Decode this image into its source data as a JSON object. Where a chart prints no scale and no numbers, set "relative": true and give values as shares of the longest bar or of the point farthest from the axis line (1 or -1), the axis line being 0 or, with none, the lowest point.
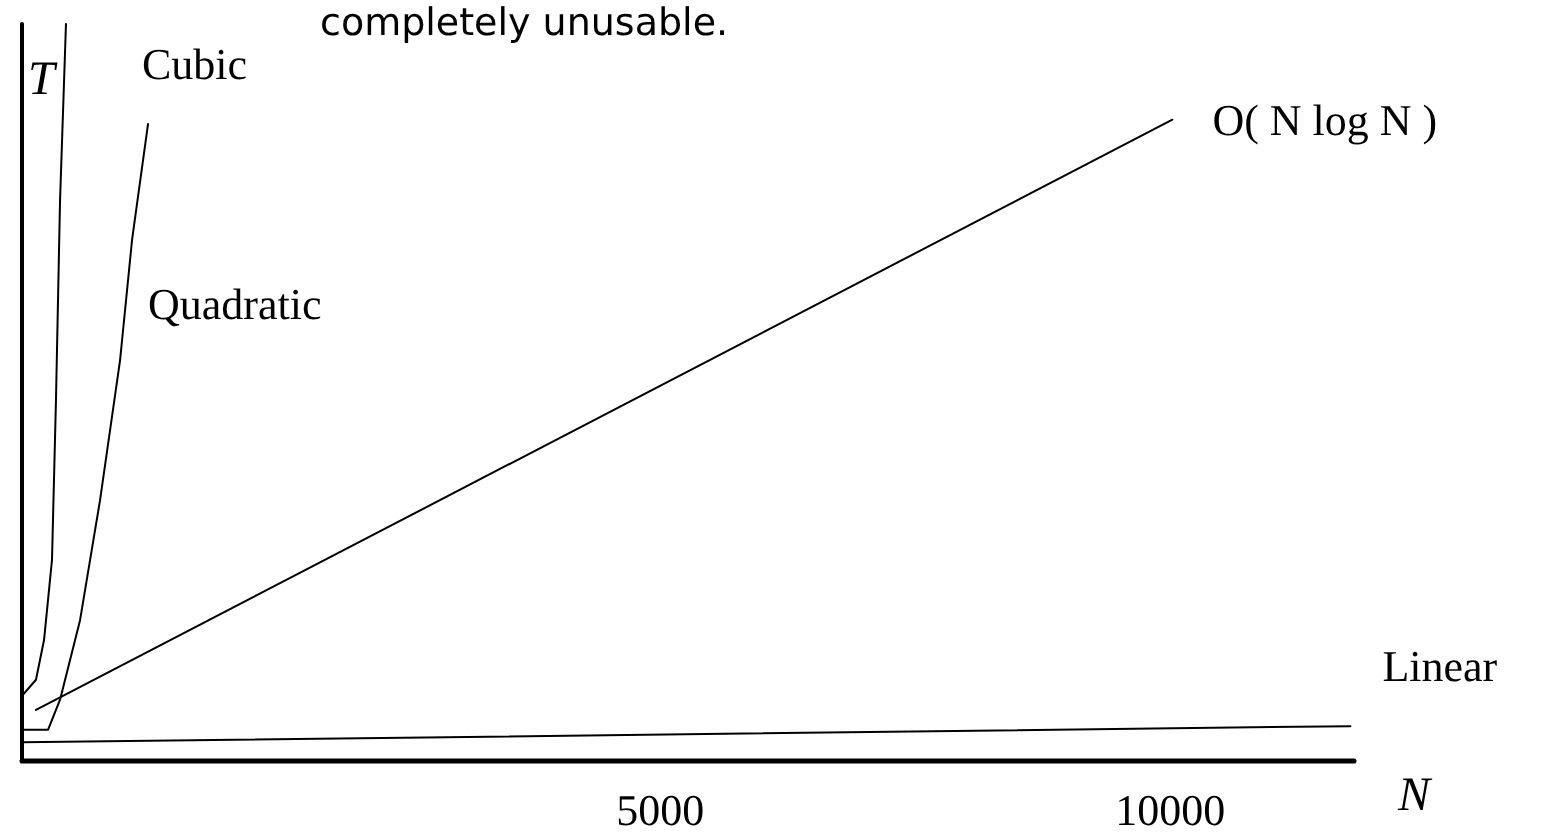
{
  "chart_data": {
    "type": "line",
    "relative": true,
    "xlabel": "N",
    "ylabel": "T",
    "annotations": [
      "completely unusable."
    ],
    "xlim": [
      -1255,
      11800
    ],
    "xticks": [
      5000,
      10000
    ],
    "grid": false,
    "legend": false,
    "marker": "none",
    "line_style": "solid",
    "series": [
      {
        "name": "Cubic",
        "color": "#000000",
        "x": [
          -1255,
          -1118,
          -1039,
          -961,
          -922,
          -882,
          -824
        ],
        "values": [
          0.087,
          0.109,
          0.163,
          0.272,
          0.489,
          0.761,
          1
        ]
      },
      {
        "name": "Quadratic",
        "color": "#000000",
        "x": [
          -1255,
          -1000,
          -882,
          -686,
          -490,
          -294,
          -176,
          -20
        ],
        "values": [
          0.041,
          0.041,
          0.082,
          0.19,
          0.353,
          0.543,
          0.707,
          0.864
        ]
      },
      {
        "name": "O( N log N )",
        "color": "#000000",
        "x": [
          -1118,
          10020
        ],
        "values": [
          0.068,
          0.87
        ]
      },
      {
        "name": "Linear",
        "color": "#000000",
        "x": [
          -1255,
          11765
        ],
        "values": [
          0.024,
          0.046
        ]
      }
    ]
  }
}
